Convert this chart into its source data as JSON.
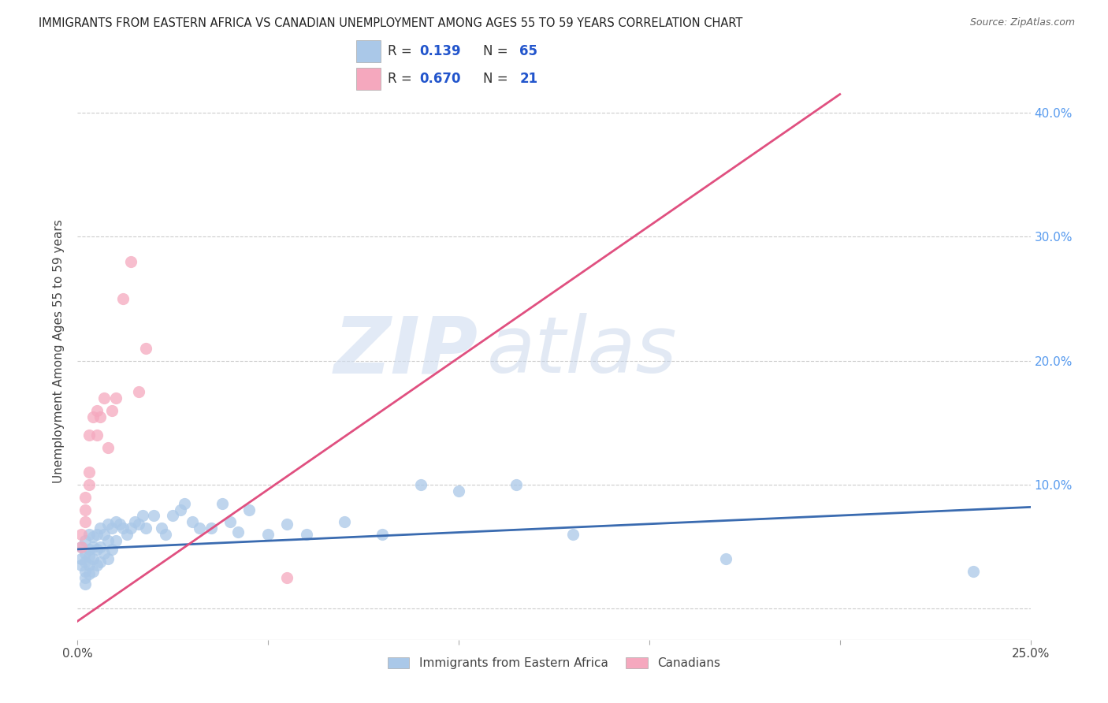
{
  "title": "IMMIGRANTS FROM EASTERN AFRICA VS CANADIAN UNEMPLOYMENT AMONG AGES 55 TO 59 YEARS CORRELATION CHART",
  "source": "Source: ZipAtlas.com",
  "ylabel": "Unemployment Among Ages 55 to 59 years",
  "xlim": [
    0.0,
    0.25
  ],
  "ylim": [
    -0.025,
    0.44
  ],
  "x_tick_positions": [
    0.0,
    0.05,
    0.1,
    0.15,
    0.2,
    0.25
  ],
  "x_tick_labels": [
    "0.0%",
    "",
    "",
    "",
    "",
    "25.0%"
  ],
  "y_tick_positions": [
    0.0,
    0.1,
    0.2,
    0.3,
    0.4
  ],
  "y_tick_labels": [
    "",
    "10.0%",
    "20.0%",
    "30.0%",
    "40.0%"
  ],
  "blue_color": "#aac8e8",
  "pink_color": "#f5a8be",
  "blue_line_color": "#3a6bb0",
  "pink_line_color": "#e05080",
  "watermark_zip": "ZIP",
  "watermark_atlas": "atlas",
  "blue_scatter_x": [
    0.001,
    0.001,
    0.001,
    0.002,
    0.002,
    0.002,
    0.002,
    0.002,
    0.002,
    0.003,
    0.003,
    0.003,
    0.003,
    0.003,
    0.004,
    0.004,
    0.004,
    0.004,
    0.005,
    0.005,
    0.005,
    0.006,
    0.006,
    0.006,
    0.007,
    0.007,
    0.008,
    0.008,
    0.008,
    0.009,
    0.009,
    0.01,
    0.01,
    0.011,
    0.012,
    0.013,
    0.014,
    0.015,
    0.016,
    0.017,
    0.018,
    0.02,
    0.022,
    0.023,
    0.025,
    0.027,
    0.028,
    0.03,
    0.032,
    0.035,
    0.038,
    0.04,
    0.042,
    0.045,
    0.05,
    0.055,
    0.06,
    0.07,
    0.08,
    0.09,
    0.1,
    0.115,
    0.13,
    0.17,
    0.235
  ],
  "blue_scatter_y": [
    0.05,
    0.04,
    0.035,
    0.055,
    0.045,
    0.038,
    0.03,
    0.025,
    0.02,
    0.06,
    0.048,
    0.042,
    0.035,
    0.028,
    0.058,
    0.05,
    0.04,
    0.03,
    0.06,
    0.048,
    0.035,
    0.065,
    0.05,
    0.038,
    0.06,
    0.045,
    0.068,
    0.055,
    0.04,
    0.065,
    0.048,
    0.07,
    0.055,
    0.068,
    0.065,
    0.06,
    0.065,
    0.07,
    0.068,
    0.075,
    0.065,
    0.075,
    0.065,
    0.06,
    0.075,
    0.08,
    0.085,
    0.07,
    0.065,
    0.065,
    0.085,
    0.07,
    0.062,
    0.08,
    0.06,
    0.068,
    0.06,
    0.07,
    0.06,
    0.1,
    0.095,
    0.1,
    0.06,
    0.04,
    0.03
  ],
  "pink_scatter_x": [
    0.001,
    0.001,
    0.002,
    0.002,
    0.002,
    0.003,
    0.003,
    0.003,
    0.004,
    0.005,
    0.005,
    0.006,
    0.007,
    0.008,
    0.009,
    0.01,
    0.012,
    0.014,
    0.016,
    0.018,
    0.055
  ],
  "pink_scatter_y": [
    0.05,
    0.06,
    0.07,
    0.08,
    0.09,
    0.1,
    0.11,
    0.14,
    0.155,
    0.14,
    0.16,
    0.155,
    0.17,
    0.13,
    0.16,
    0.17,
    0.25,
    0.28,
    0.175,
    0.21,
    0.025
  ],
  "blue_trend_x0": 0.0,
  "blue_trend_y0": 0.048,
  "blue_trend_x1": 0.25,
  "blue_trend_y1": 0.082,
  "pink_trend_x0": 0.0,
  "pink_trend_y0": -0.01,
  "pink_trend_x1": 0.2,
  "pink_trend_y1": 0.415,
  "background_color": "#ffffff",
  "grid_color": "#cccccc",
  "legend_R1": "0.139",
  "legend_N1": "65",
  "legend_R2": "0.670",
  "legend_N2": "21"
}
